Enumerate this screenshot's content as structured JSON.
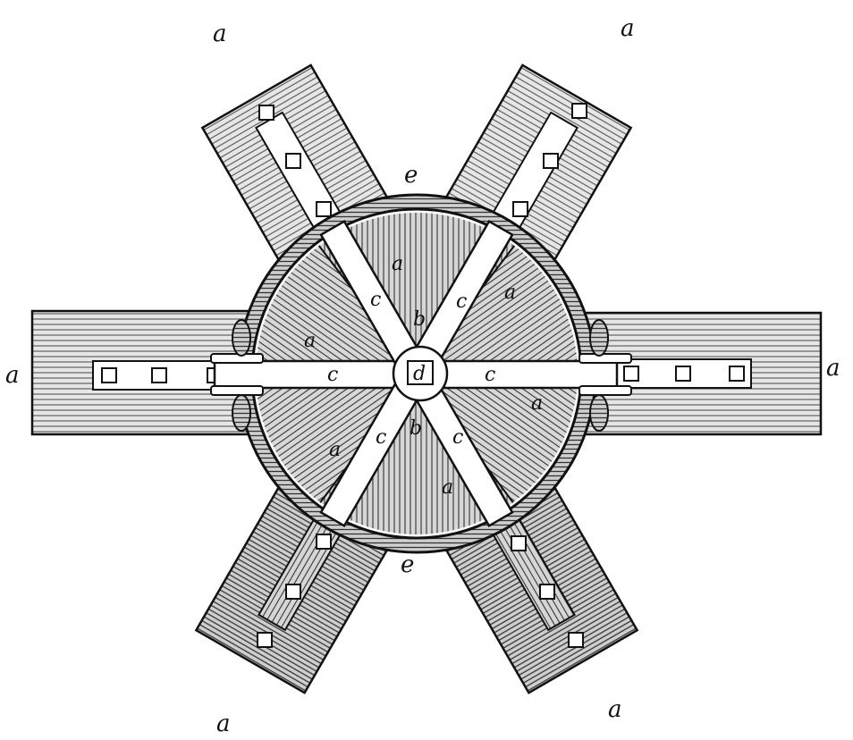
{
  "labels": {
    "arm_top_left": "a",
    "arm_top_right": "a",
    "arm_left": "a",
    "arm_right": "a",
    "arm_bottom_left": "a",
    "arm_bottom_right": "a",
    "rim_top": "e",
    "rim_bottom": "e",
    "spoke_upper_left": "c",
    "spoke_upper_right": "c",
    "spoke_left": "c",
    "spoke_right": "c",
    "spoke_lower_left": "c",
    "spoke_lower_right": "c",
    "block_upper": "b",
    "block_lower": "b",
    "filler_top": "a",
    "filler_upper_right": "a",
    "filler_left": "a",
    "filler_right": "a",
    "filler_lower_left": "a",
    "filler_bottom": "a",
    "hub": "d"
  },
  "colors": {
    "ink": "#111111",
    "paper": "#ffffff",
    "timber_shade": "#c9c9c9",
    "timber_light": "#e4e4e4"
  }
}
